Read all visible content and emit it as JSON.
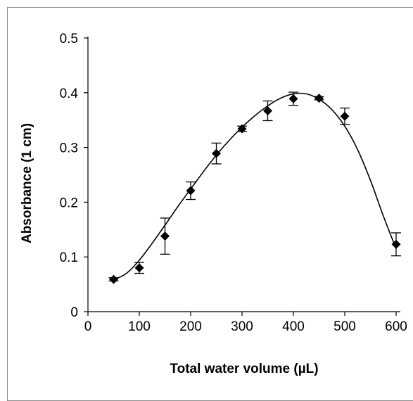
{
  "chart_data": {
    "type": "scatter",
    "title": "",
    "xlabel": "Total water volume (µL)",
    "ylabel": "Absorbance (1 cm)",
    "xlim": [
      0,
      600
    ],
    "ylim": [
      0,
      0.5
    ],
    "x_ticks": [
      "0",
      "100",
      "200",
      "300",
      "400",
      "500",
      "600"
    ],
    "y_ticks": [
      "0",
      "0.1",
      "0.2",
      "0.3",
      "0.4",
      "0.5"
    ],
    "grid": false,
    "legend": "none",
    "marker": "diamond",
    "color": "#000000",
    "series": [
      {
        "x": [
          50,
          100,
          150,
          200,
          250,
          300,
          350,
          400,
          450,
          500,
          600
        ],
        "y": [
          0.059,
          0.08,
          0.138,
          0.221,
          0.289,
          0.334,
          0.367,
          0.389,
          0.39,
          0.357,
          0.123
        ],
        "error": [
          0.003,
          0.01,
          0.033,
          0.016,
          0.019,
          0.005,
          0.018,
          0.012,
          0.003,
          0.015,
          0.021
        ]
      }
    ],
    "fit_curve": {
      "x": [
        50,
        75,
        100,
        125,
        150,
        175,
        200,
        225,
        250,
        275,
        300,
        325,
        350,
        375,
        400,
        425,
        450,
        475,
        500,
        525,
        550,
        575,
        600
      ],
      "y": [
        0.058,
        0.07,
        0.094,
        0.125,
        0.158,
        0.192,
        0.224,
        0.256,
        0.286,
        0.313,
        0.337,
        0.358,
        0.376,
        0.39,
        0.398,
        0.398,
        0.388,
        0.369,
        0.339,
        0.296,
        0.24,
        0.175,
        0.115
      ]
    }
  }
}
